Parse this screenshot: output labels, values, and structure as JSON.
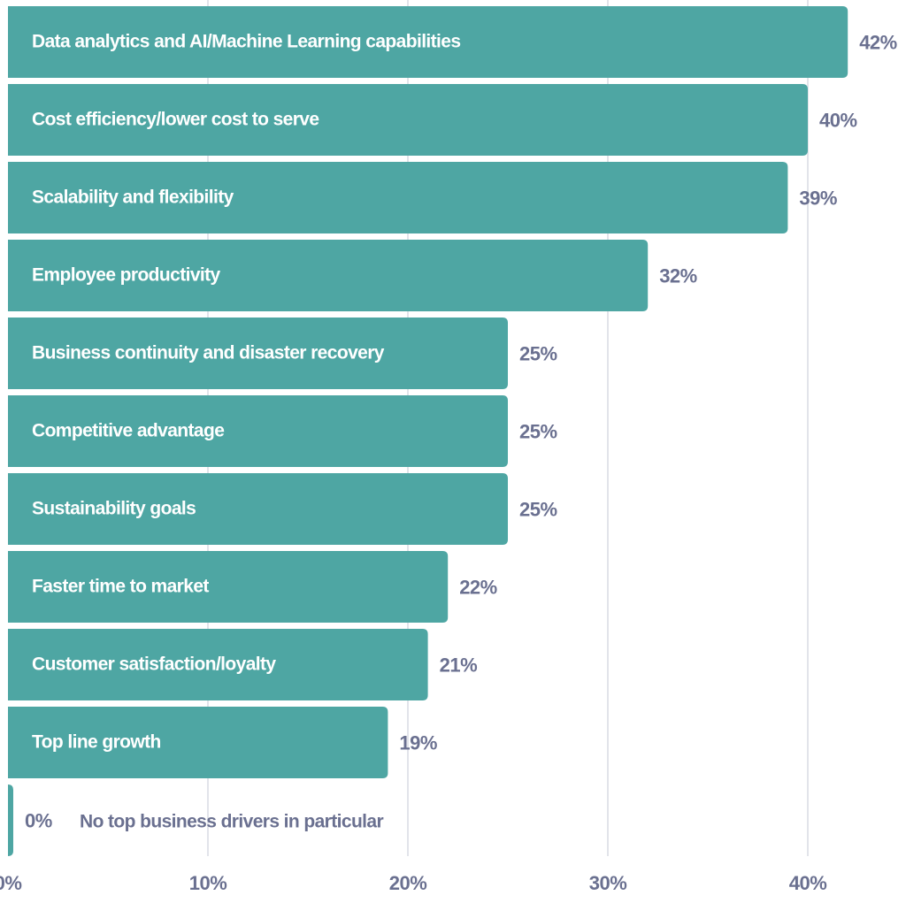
{
  "chart_data": {
    "type": "bar",
    "orientation": "horizontal",
    "title": "",
    "xlabel": "",
    "ylabel": "",
    "xlim": [
      0,
      45
    ],
    "xticks": [
      0,
      10,
      20,
      30,
      40
    ],
    "xtick_labels": [
      "0%",
      "10%",
      "20%",
      "30%",
      "40%"
    ],
    "grid": "vertical",
    "bar_color": "#4ea6a3",
    "label_color": "#6a7090",
    "categories": [
      "Data analytics and AI/Machine Learning capabilities",
      "Cost efficiency/lower cost to serve",
      "Scalability and flexibility",
      "Employee productivity",
      "Business continuity and disaster recovery",
      "Competitive advantage",
      "Sustainability goals",
      "Faster time to market",
      "Customer satisfaction/loyalty",
      "Top line growth",
      "No top business drivers in particular"
    ],
    "values": [
      42,
      40,
      39,
      32,
      25,
      25,
      25,
      22,
      21,
      19,
      0
    ],
    "value_labels": [
      "42%",
      "40%",
      "39%",
      "32%",
      "25%",
      "25%",
      "25%",
      "22%",
      "21%",
      "19%",
      "0%"
    ]
  }
}
